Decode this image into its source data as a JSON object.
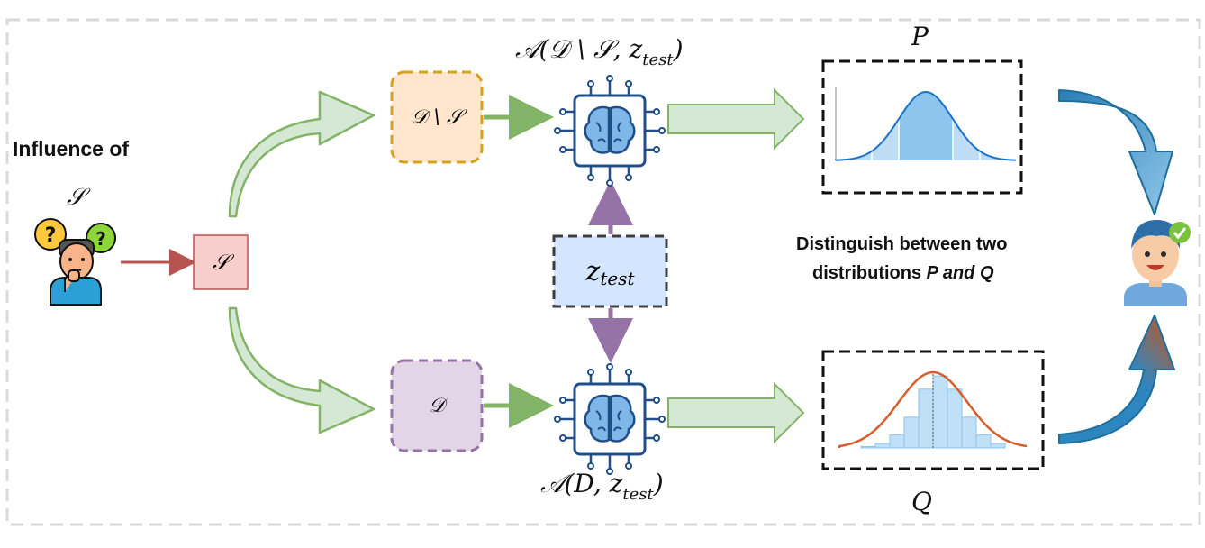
{
  "left": {
    "title": "Influence of",
    "set_symbol": "𝒮"
  },
  "nodes": {
    "s_box": "𝒮",
    "d_minus_s": "𝒟 \\ 𝒮",
    "d": "𝒟",
    "z_test": "z",
    "z_test_sub": "test"
  },
  "model_top": {
    "prefix": "𝒜(𝒟 \\ 𝒮, z",
    "sub": "test",
    "suffix": ")"
  },
  "model_bottom": {
    "prefix": "𝒜(D, z",
    "sub": "test",
    "suffix": ")"
  },
  "dist_p_label": "P",
  "dist_q_label": "Q",
  "distinguish": {
    "line1": "Distinguish between two",
    "line2_plain": "distributions ",
    "line2_italic": "P and Q"
  },
  "icons": [
    "thinking-person-icon",
    "ai-brain-chip-icon",
    "happy-person-check-icon"
  ],
  "colors": {
    "green_arrow": "#82b366",
    "green_fill": "#d5e8d4",
    "red_box_fill": "#f8cecc",
    "red_box_stroke": "#b85450",
    "orange_box_fill": "#ffe6cc",
    "orange_box_stroke": "#d6a21e",
    "purple_box_fill": "#e1d5e7",
    "purple_box_stroke": "#9673a6",
    "blue_box_fill": "#d4e6ff",
    "chip_blue": "#1f4e89",
    "curve_blue": "#1a73c9",
    "curve_red": "#d65e2c",
    "arrow_blue": "#2e86c1",
    "arrow_orange": "#c9541a"
  }
}
